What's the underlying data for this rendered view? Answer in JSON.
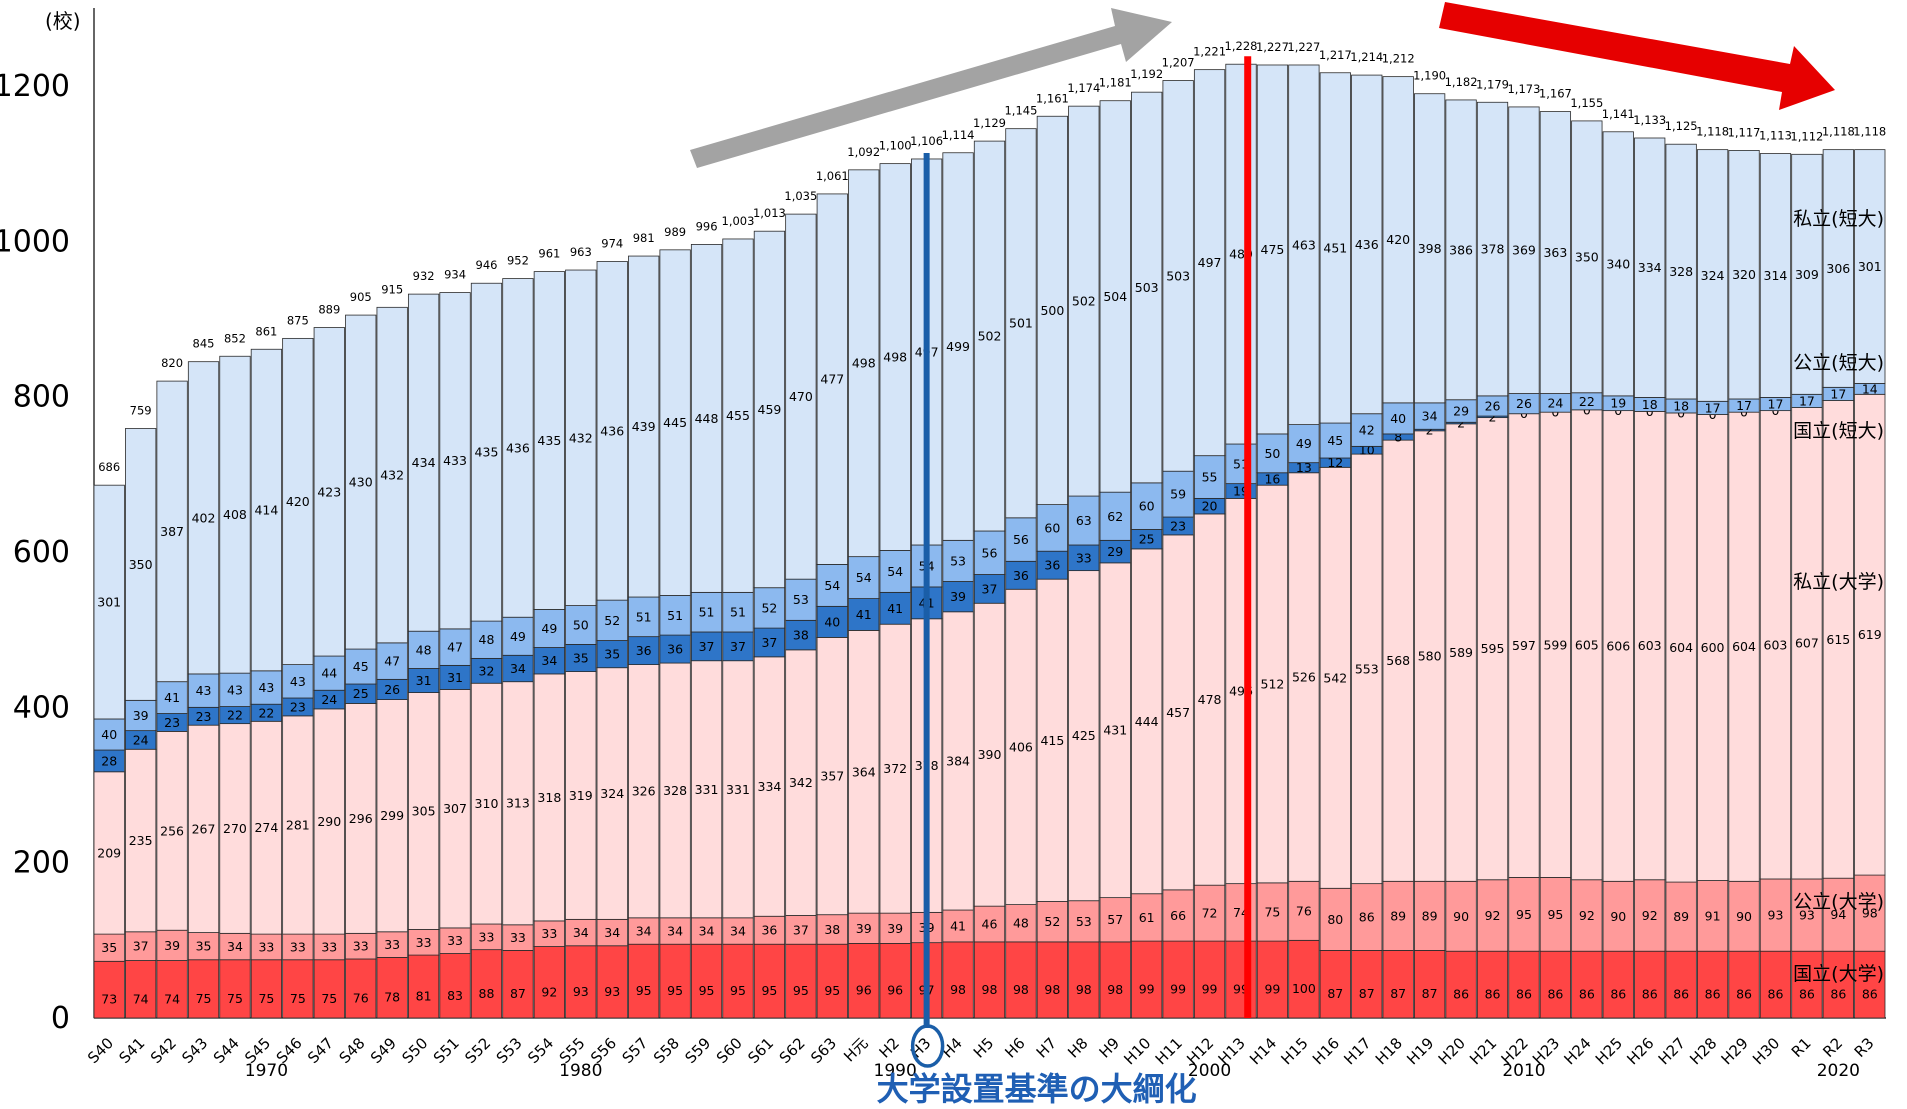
{
  "chart_data": {
    "type": "bar",
    "stacked": true,
    "unit_label": "(校)",
    "ylim": [
      0,
      1300
    ],
    "yticks": [
      0,
      200,
      400,
      600,
      800,
      1000,
      1200
    ],
    "grid": false,
    "categories": [
      "S40",
      "S41",
      "S42",
      "S43",
      "S44",
      "S45",
      "S46",
      "S47",
      "S48",
      "S49",
      "S50",
      "S51",
      "S52",
      "S53",
      "S54",
      "S55",
      "S56",
      "S57",
      "S58",
      "S59",
      "S60",
      "S61",
      "S62",
      "S63",
      "H元",
      "H2",
      "H3",
      "H4",
      "H5",
      "H6",
      "H7",
      "H8",
      "H9",
      "H10",
      "H11",
      "H12",
      "H13",
      "H14",
      "H15",
      "H16",
      "H17",
      "H18",
      "H19",
      "H20",
      "H21",
      "H22",
      "H23",
      "H24",
      "H25",
      "H26",
      "H27",
      "H28",
      "H29",
      "H30",
      "R1",
      "R2",
      "R3"
    ],
    "year_labels": [
      {
        "label": "1970",
        "at": "S45"
      },
      {
        "label": "1980",
        "at": "S55"
      },
      {
        "label": "1990",
        "at": "H2"
      },
      {
        "label": "2000",
        "at": "H12"
      },
      {
        "label": "2010",
        "at": "H22"
      },
      {
        "label": "2020",
        "at": "R2"
      }
    ],
    "series": [
      {
        "name": "国立(大学)",
        "color": "#ff4545",
        "values": [
          73,
          74,
          74,
          75,
          75,
          75,
          75,
          75,
          76,
          78,
          81,
          83,
          88,
          87,
          92,
          93,
          93,
          95,
          95,
          95,
          95,
          95,
          95,
          95,
          96,
          96,
          97,
          98,
          98,
          98,
          98,
          98,
          98,
          99,
          99,
          99,
          99,
          99,
          100,
          87,
          87,
          87,
          87,
          86,
          86,
          86,
          86,
          86,
          86,
          86,
          86,
          86,
          86,
          86,
          86,
          86,
          86
        ]
      },
      {
        "name": "公立(大学)",
        "color": "#ff9a9a",
        "values": [
          35,
          37,
          39,
          35,
          34,
          33,
          33,
          33,
          33,
          33,
          33,
          33,
          33,
          33,
          33,
          34,
          34,
          34,
          34,
          34,
          34,
          36,
          37,
          38,
          39,
          39,
          39,
          41,
          46,
          48,
          52,
          53,
          57,
          61,
          66,
          72,
          74,
          75,
          76,
          80,
          86,
          89,
          89,
          90,
          92,
          95,
          95,
          92,
          90,
          92,
          89,
          91,
          90,
          93,
          93,
          94,
          98
        ]
      },
      {
        "name": "私立(大学)",
        "color": "#ffdcdc",
        "values": [
          209,
          235,
          256,
          267,
          270,
          274,
          281,
          290,
          296,
          299,
          305,
          307,
          310,
          313,
          318,
          319,
          324,
          326,
          328,
          331,
          331,
          334,
          342,
          357,
          364,
          372,
          378,
          384,
          390,
          406,
          415,
          425,
          431,
          444,
          457,
          478,
          496,
          512,
          526,
          542,
          553,
          568,
          580,
          589,
          595,
          597,
          599,
          605,
          606,
          603,
          604,
          600,
          604,
          603,
          607,
          615,
          619
        ]
      },
      {
        "name": "国立(短大)",
        "color": "#2e75c8",
        "values": [
          28,
          24,
          23,
          23,
          22,
          22,
          23,
          24,
          25,
          26,
          31,
          31,
          32,
          34,
          34,
          35,
          35,
          36,
          36,
          37,
          37,
          37,
          38,
          40,
          41,
          41,
          41,
          39,
          37,
          36,
          36,
          33,
          29,
          25,
          23,
          20,
          19,
          16,
          13,
          12,
          10,
          8,
          2,
          2,
          2,
          0,
          0,
          0,
          0,
          0,
          0,
          0,
          0,
          0,
          0,
          0,
          0
        ]
      },
      {
        "name": "公立(短大)",
        "color": "#8cb9ef",
        "values": [
          40,
          39,
          41,
          43,
          43,
          43,
          43,
          44,
          45,
          47,
          48,
          47,
          48,
          49,
          49,
          50,
          52,
          51,
          51,
          51,
          51,
          52,
          53,
          54,
          54,
          54,
          54,
          53,
          56,
          56,
          60,
          63,
          62,
          60,
          59,
          55,
          51,
          50,
          49,
          45,
          42,
          40,
          34,
          29,
          26,
          26,
          24,
          22,
          19,
          18,
          18,
          17,
          17,
          17,
          17,
          17,
          14
        ]
      },
      {
        "name": "私立(短大)",
        "color": "#d5e5f8",
        "values": [
          301,
          350,
          387,
          402,
          408,
          414,
          420,
          423,
          430,
          432,
          434,
          433,
          435,
          436,
          435,
          432,
          436,
          439,
          445,
          448,
          455,
          459,
          470,
          477,
          498,
          498,
          497,
          499,
          502,
          501,
          500,
          502,
          504,
          503,
          503,
          497,
          489,
          475,
          463,
          451,
          436,
          420,
          398,
          386,
          378,
          369,
          363,
          350,
          340,
          334,
          328,
          324,
          320,
          314,
          309,
          306,
          301
        ]
      }
    ],
    "totals": [
      "686",
      "759",
      "820",
      "845",
      "852",
      "861",
      "875",
      "889",
      "905",
      "915",
      "932",
      "934",
      "946",
      "952",
      "961",
      "963",
      "974",
      "981",
      "989",
      "996",
      "1,003",
      "1,013",
      "1,035",
      "1,061",
      "1,092",
      "1,100",
      "1,106",
      "1,114",
      "1,129",
      "1,145",
      "1,161",
      "1,174",
      "1,181",
      "1,192",
      "1,207",
      "1,221",
      "1,228",
      "1,227",
      "1,227",
      "1,217",
      "1,214",
      "1,212",
      "1,190",
      "1,182",
      "1,179",
      "1,173",
      "1,167",
      "1,155",
      "1,141",
      "1,133",
      "1,125",
      "1,118",
      "1,117",
      "1,113",
      "1,112",
      "1,118",
      "1,118"
    ],
    "legend_placement": "right, beside last bar",
    "annotations": {
      "policy_text": "大学設置基準の大綱化",
      "policy_at": "H3",
      "peak_line_at": "H13",
      "rising_arrow": "gray",
      "falling_arrow": "red"
    }
  }
}
